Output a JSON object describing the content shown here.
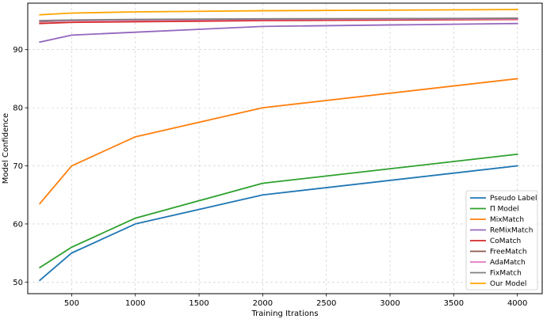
{
  "chart_data": {
    "type": "line",
    "title": "",
    "xlabel": "Training Itrations",
    "ylabel": "Model Confidence",
    "xlim": [
      155,
      4195
    ],
    "ylim": [
      48,
      98
    ],
    "xticks": [
      500,
      1000,
      1500,
      2000,
      2500,
      3000,
      3500,
      4000
    ],
    "yticks": [
      50,
      60,
      70,
      80,
      90
    ],
    "grid": true,
    "legend_position": "lower-right",
    "x": [
      250,
      500,
      1000,
      2000,
      4000
    ],
    "series": [
      {
        "name": "Pseudo Label",
        "color": "#1f77b4",
        "values": [
          50.3,
          55.0,
          60.0,
          65.0,
          70.0
        ]
      },
      {
        "name": "Π Model",
        "color": "#2ca02c",
        "values": [
          52.5,
          56.0,
          61.0,
          67.0,
          72.0
        ]
      },
      {
        "name": "MixMatch",
        "color": "#ff7f0e",
        "values": [
          63.5,
          70.0,
          75.0,
          80.0,
          85.0
        ]
      },
      {
        "name": "ReMixMatch",
        "color": "#9467bd",
        "values": [
          91.3,
          92.5,
          93.0,
          94.0,
          94.5
        ]
      },
      {
        "name": "CoMatch",
        "color": "#d62728",
        "values": [
          94.5,
          94.7,
          94.8,
          95.0,
          95.2
        ]
      },
      {
        "name": "FreeMatch",
        "color": "#8c564b",
        "values": [
          94.8,
          95.0,
          95.1,
          95.2,
          95.4
        ]
      },
      {
        "name": "AdaMatch",
        "color": "#e377c2",
        "values": [
          94.9,
          95.0,
          95.1,
          95.2,
          95.3
        ]
      },
      {
        "name": "FixMatch",
        "color": "#7f7f7f",
        "values": [
          95.0,
          95.1,
          95.2,
          95.3,
          95.4
        ]
      },
      {
        "name": "Our Model",
        "color": "#ffa500",
        "values": [
          96.0,
          96.3,
          96.5,
          96.7,
          96.9
        ]
      }
    ]
  }
}
